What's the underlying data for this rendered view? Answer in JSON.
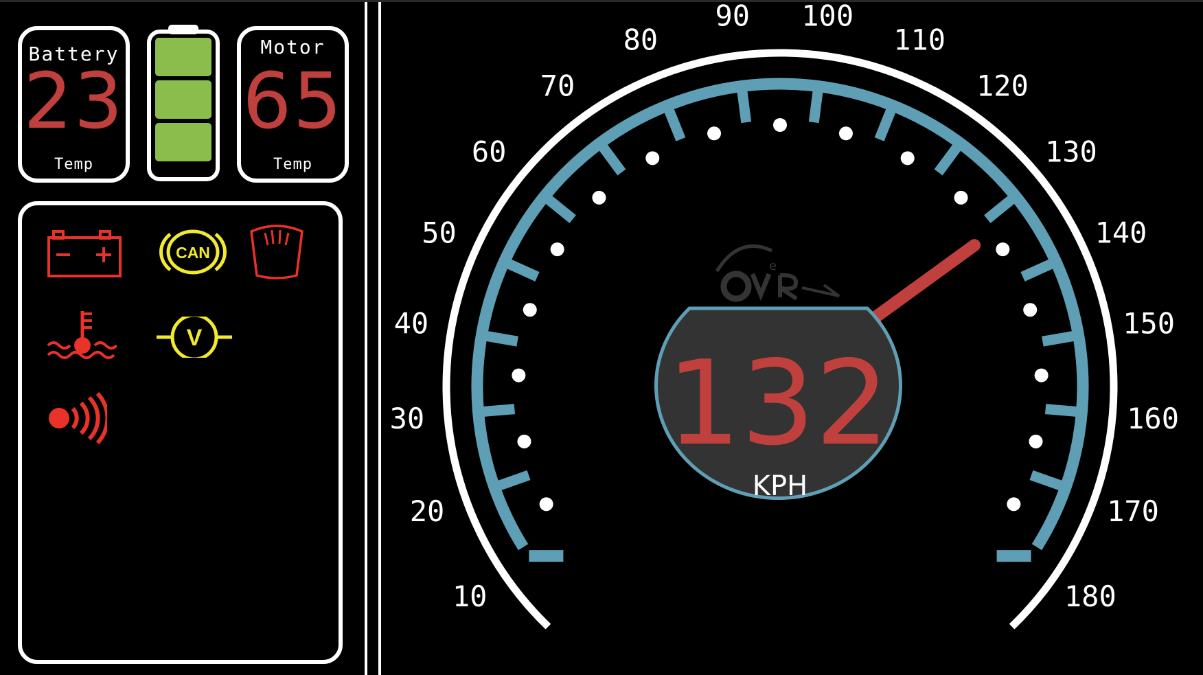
{
  "battery_temp": {
    "title": "Battery",
    "value": "23",
    "subtitle": "Temp"
  },
  "motor_temp": {
    "title": "Motor",
    "value": "65",
    "subtitle": "Temp"
  },
  "battery_level": {
    "segments_filled": 3,
    "segments_total": 3,
    "color": "#8bbd4c"
  },
  "warning_lights": [
    {
      "name": "battery-warning-icon",
      "color": "#e8322a"
    },
    {
      "name": "can-bus-warning-icon",
      "color": "#f2ea2e",
      "label": "CAN"
    },
    {
      "name": "seat-icon",
      "color": "#e8322a"
    },
    {
      "name": "coolant-temperature-icon",
      "color": "#e8322a"
    },
    {
      "name": "voltage-warning-icon",
      "color": "#f2ea2e",
      "label": "V"
    },
    {
      "name": "proximity-sensor-icon",
      "color": "#e8322a"
    }
  ],
  "speedometer": {
    "speed": "132",
    "unit": "KPH",
    "needle_value": 132,
    "min": 10,
    "max": 180,
    "scale_labels": [
      "10",
      "20",
      "30",
      "40",
      "50",
      "60",
      "70",
      "80",
      "90",
      "100",
      "110",
      "120",
      "130",
      "140",
      "150",
      "160",
      "170",
      "180"
    ],
    "colors": {
      "tick_band": "#5f9fb6",
      "needle": "#c0403e",
      "readout_bg": "#333333",
      "readout_text": "#c0403e",
      "outer_arc": "#ffffff"
    }
  }
}
